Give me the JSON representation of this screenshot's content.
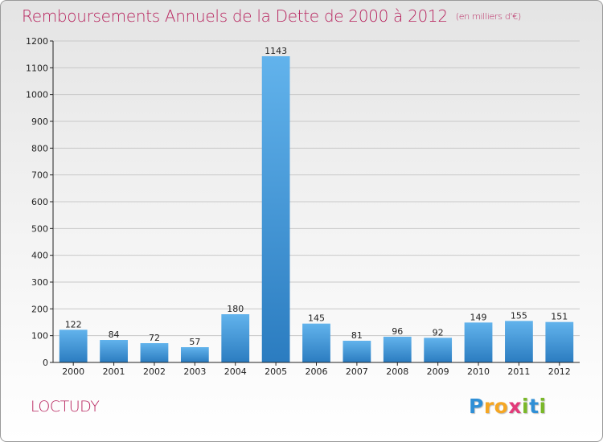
{
  "header": {
    "title": "Remboursements Annuels de la Dette de 2000 à 2012",
    "unit": "(en milliers d'€)"
  },
  "footer": {
    "commune": "LOCTUDY",
    "logo_text": "Proxiti",
    "logo_letters": [
      {
        "ch": "P",
        "color": "#2f8fd6"
      },
      {
        "ch": "r",
        "color": "#f5a623"
      },
      {
        "ch": "o",
        "color": "#f5a623"
      },
      {
        "ch": "x",
        "color": "#e23a7a"
      },
      {
        "ch": "i",
        "color": "#7ab829"
      },
      {
        "ch": "t",
        "color": "#2f8fd6"
      },
      {
        "ch": "i",
        "color": "#7ab829"
      }
    ]
  },
  "colors": {
    "bar_top": "#62b3ec",
    "bar_bottom": "#2b7cc0",
    "title": "#b8255f",
    "axis": "#222222",
    "grid": "#c8c8c8"
  },
  "chart_data": {
    "type": "bar",
    "title": "Remboursements Annuels de la Dette de 2000 à 2012",
    "categories": [
      "2000",
      "2001",
      "2002",
      "2003",
      "2004",
      "2005",
      "2006",
      "2007",
      "2008",
      "2009",
      "2010",
      "2011",
      "2012"
    ],
    "values": [
      122,
      84,
      72,
      57,
      180,
      1143,
      145,
      81,
      96,
      92,
      149,
      155,
      151
    ],
    "ylim": [
      0,
      1200
    ],
    "yticks": [
      0,
      100,
      200,
      300,
      400,
      500,
      600,
      700,
      800,
      900,
      1000,
      1100,
      1200
    ],
    "grid": true,
    "xlabel": "",
    "ylabel": ""
  }
}
